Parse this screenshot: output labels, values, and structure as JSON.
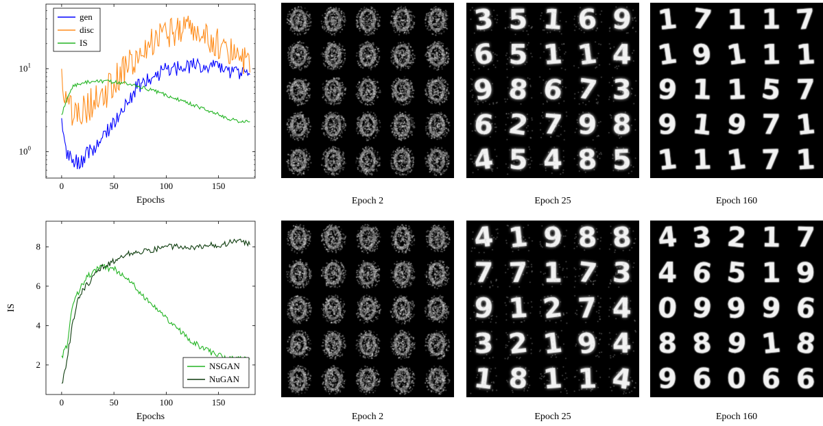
{
  "chart_data": [
    {
      "type": "line",
      "xlabel": "Epochs",
      "ylabel": "",
      "yscale": "log",
      "xlim": [
        -15,
        185
      ],
      "ylim": [
        0.48,
        60
      ],
      "xticks": [
        "0",
        "50",
        "100",
        "150"
      ],
      "yticks": [
        "10^0",
        "10^1"
      ],
      "legend_position": "top-left",
      "colors": {
        "gen": "#0000ff",
        "disc": "#ff8c1a",
        "IS": "#22b422"
      },
      "series": [
        {
          "name": "gen",
          "x": [
            0,
            5,
            10,
            15,
            20,
            30,
            40,
            50,
            60,
            70,
            80,
            90,
            100,
            110,
            120,
            130,
            140,
            150,
            160,
            170,
            180
          ],
          "values": [
            2.3,
            1.0,
            0.85,
            0.72,
            0.8,
            1.1,
            1.5,
            2.3,
            3.5,
            5.5,
            7.5,
            8.5,
            9.5,
            10.0,
            10.5,
            11.0,
            10.5,
            10.0,
            9.5,
            9.0,
            8.5
          ]
        },
        {
          "name": "disc",
          "x": [
            0,
            5,
            10,
            15,
            20,
            30,
            40,
            50,
            60,
            70,
            80,
            90,
            100,
            110,
            120,
            130,
            140,
            150,
            160,
            170,
            180
          ],
          "values": [
            8.0,
            3.5,
            3.0,
            3.5,
            3.0,
            4.0,
            4.5,
            7.0,
            10.0,
            14.0,
            18.0,
            22.0,
            25.0,
            27.0,
            28.0,
            26.0,
            22.0,
            20.0,
            18.0,
            16.0,
            9.0
          ]
        },
        {
          "name": "IS",
          "x": [
            0,
            5,
            10,
            20,
            30,
            40,
            50,
            60,
            70,
            80,
            90,
            100,
            110,
            120,
            130,
            140,
            150,
            160,
            170,
            180
          ],
          "values": [
            2.7,
            4.5,
            6.0,
            6.8,
            7.0,
            7.0,
            6.9,
            6.7,
            6.2,
            5.8,
            5.3,
            4.8,
            4.3,
            3.9,
            3.5,
            3.1,
            2.8,
            2.5,
            2.3,
            2.3
          ]
        }
      ]
    },
    {
      "type": "line",
      "xlabel": "Epochs",
      "ylabel": "IS",
      "xlim": [
        -15,
        185
      ],
      "ylim": [
        0.5,
        9.3
      ],
      "xticks": [
        "0",
        "50",
        "100",
        "150"
      ],
      "yticks": [
        "2",
        "4",
        "6",
        "8"
      ],
      "legend_position": "bottom-right",
      "colors": {
        "NSGAN": "#22b422",
        "NuGAN": "#0b3a0b"
      },
      "series": [
        {
          "name": "NSGAN",
          "x": [
            0,
            5,
            10,
            15,
            20,
            25,
            30,
            35,
            40,
            45,
            50,
            55,
            60,
            65,
            70,
            80,
            90,
            100,
            110,
            120,
            130,
            140,
            150,
            160,
            170,
            180
          ],
          "values": [
            2.4,
            3.0,
            4.8,
            5.6,
            6.1,
            6.5,
            6.7,
            6.9,
            7.0,
            6.9,
            6.9,
            6.7,
            6.5,
            6.2,
            6.0,
            5.4,
            4.9,
            4.4,
            3.9,
            3.4,
            3.0,
            2.7,
            2.5,
            2.3,
            2.3,
            2.3
          ]
        },
        {
          "name": "NuGAN",
          "x": [
            0,
            5,
            10,
            15,
            20,
            25,
            30,
            35,
            40,
            45,
            50,
            60,
            70,
            80,
            90,
            100,
            110,
            120,
            130,
            140,
            150,
            160,
            170,
            180
          ],
          "values": [
            1.0,
            2.2,
            4.0,
            5.2,
            5.8,
            6.1,
            6.4,
            6.8,
            7.0,
            7.1,
            7.3,
            7.6,
            7.7,
            7.8,
            7.9,
            8.0,
            8.0,
            8.0,
            8.0,
            8.1,
            8.1,
            8.2,
            8.3,
            8.1
          ]
        }
      ]
    }
  ],
  "sample_grids": {
    "row1": [
      {
        "caption": "Epoch 2",
        "digits": []
      },
      {
        "caption": "Epoch 25",
        "digits": [
          "3",
          "5",
          "1",
          "6",
          "9",
          "6",
          "5",
          "1",
          "1",
          "4",
          "9",
          "8",
          "6",
          "7",
          "3",
          "6",
          "2",
          "7",
          "9",
          "8",
          "4",
          "5",
          "4",
          "8",
          "5"
        ]
      },
      {
        "caption": "Epoch 160",
        "digits": [
          "1",
          "7",
          "1",
          "1",
          "7",
          "1",
          "9",
          "1",
          "1",
          "1",
          "9",
          "1",
          "1",
          "5",
          "7",
          "9",
          "1",
          "9",
          "7",
          "1",
          "1",
          "1",
          "1",
          "7",
          "1"
        ]
      }
    ],
    "row2": [
      {
        "caption": "Epoch 2",
        "digits": []
      },
      {
        "caption": "Epoch 25",
        "digits": [
          "4",
          "1",
          "9",
          "8",
          "8",
          "7",
          "7",
          "1",
          "7",
          "3",
          "9",
          "1",
          "2",
          "7",
          "4",
          "3",
          "2",
          "1",
          "9",
          "4",
          "1",
          "8",
          "1",
          "1",
          "4"
        ]
      },
      {
        "caption": "Epoch 160",
        "digits": [
          "4",
          "3",
          "2",
          "1",
          "7",
          "4",
          "6",
          "5",
          "1",
          "9",
          "0",
          "9",
          "9",
          "9",
          "6",
          "8",
          "8",
          "9",
          "1",
          "8",
          "9",
          "6",
          "0",
          "6",
          "6"
        ]
      }
    ]
  }
}
